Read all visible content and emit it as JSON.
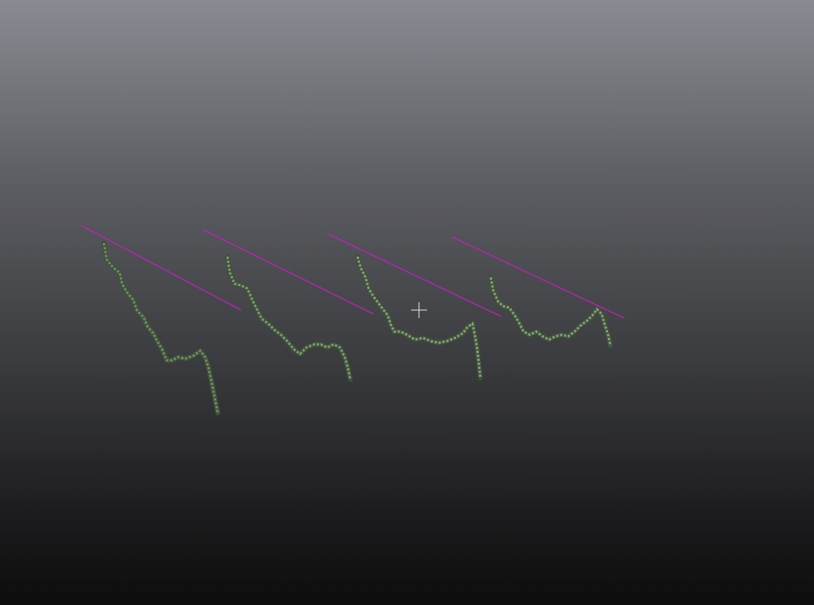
{
  "viewport": {
    "background_top": "#8a8b92",
    "background_bottom": "#0d0d0e"
  },
  "scene": {
    "guide_line_color": "#c21ec2",
    "scan_color": "#6f8a66",
    "scan_dark_color": "#3f5238",
    "cursor_color": "#e8e8e8",
    "cursor_icon": "crosshair-icon",
    "profile_count": 4
  }
}
